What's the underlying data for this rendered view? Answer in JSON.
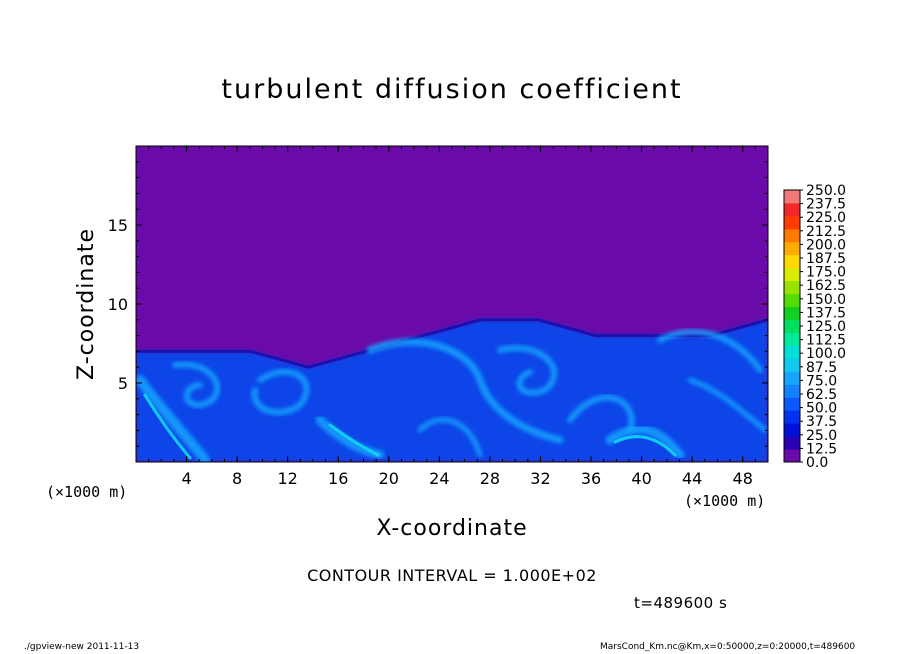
{
  "chart_data": {
    "type": "heatmap",
    "title": "turbulent diffusion coefficient",
    "xlabel": "X-coordinate",
    "ylabel": "Z-coordinate",
    "x_unit_left": "(×1000 m)",
    "x_unit_right": "(×1000 m)",
    "xlim": [
      0,
      50
    ],
    "ylim": [
      0,
      20
    ],
    "x_ticks": [
      "4",
      "8",
      "12",
      "16",
      "20",
      "24",
      "28",
      "32",
      "36",
      "40",
      "44",
      "48"
    ],
    "y_ticks": [
      "5",
      "10",
      "15"
    ],
    "background_value_color": "#6a0aa8",
    "colorbar": {
      "levels": [
        "0.0",
        "12.5",
        "25.0",
        "37.5",
        "50.0",
        "62.5",
        "75.0",
        "87.5",
        "100.0",
        "112.5",
        "125.0",
        "137.5",
        "150.0",
        "162.5",
        "175.0",
        "187.5",
        "200.0",
        "212.5",
        "225.0",
        "237.5",
        "250.0"
      ],
      "colors": [
        "#6a0aa8",
        "#2a00b4",
        "#0010d8",
        "#0030f0",
        "#0a58ff",
        "#1482ff",
        "#14a6ff",
        "#10c8f0",
        "#00e0d8",
        "#00e89c",
        "#00e060",
        "#10d020",
        "#54dc00",
        "#98e400",
        "#d8ec00",
        "#ffd800",
        "#ffac00",
        "#ff7a00",
        "#ff3c00",
        "#f02828",
        "#f07878"
      ]
    },
    "turbulent_layer_top_km": [
      7,
      7,
      7,
      6,
      7,
      8,
      9,
      9,
      8,
      8,
      8,
      9
    ]
  },
  "annotations": {
    "contour_interval": "CONTOUR INTERVAL = 1.000E+02",
    "time": "t=489600  s"
  },
  "footer": {
    "left": "./gpview-new   2011-11-13",
    "right": "MarsCond_Km.nc@Km,x=0:50000,z=0:20000,t=489600"
  }
}
